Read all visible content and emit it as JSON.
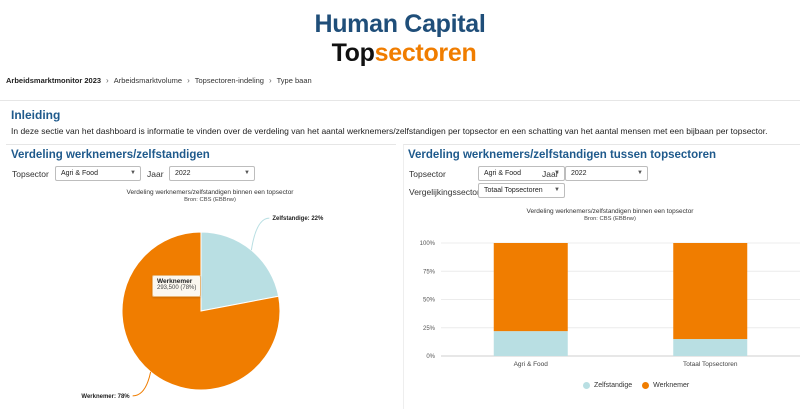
{
  "logo": {
    "line1": "Human Capital",
    "line2_a": "Top",
    "line2_b": "sectoren"
  },
  "breadcrumb": [
    "Arbeidsmarktmonitor 2023",
    "Arbeidsmarktvolume",
    "Topsectoren-indeling",
    "Type baan"
  ],
  "intro": {
    "title": "Inleiding",
    "text": "In deze sectie van het dashboard is informatie te vinden over de verdeling van het aantal werknemers/zelfstandigen per topsector en een schatting van het aantal mensen met een bijbaan per topsector."
  },
  "left_panel": {
    "title": "Verdeling werknemers/zelfstandigen",
    "topsector_label": "Topsector",
    "topsector_value": "Agri & Food",
    "jaar_label": "Jaar",
    "jaar_value": "2022",
    "tooltip": {
      "name": "Werknemer",
      "value": "293,500 (78%)"
    }
  },
  "right_panel": {
    "title": "Verdeling werknemers/zelfstandigen tussen topsectoren",
    "topsector_label": "Topsector",
    "topsector_value": "Agri & Food",
    "jaar_label": "Jaar",
    "jaar_value": "2022",
    "vergelijk_label": "Vergelijkingssector",
    "vergelijk_value": "Totaal Topsectoren"
  },
  "colors": {
    "werknemer": "#f07d00",
    "zelfstandige": "#b9dfe3",
    "title_blue": "#1f5a8c"
  },
  "chart_data": [
    {
      "type": "pie",
      "title": "Verdeling werknemers/zelfstandigen binnen een topsector",
      "subtitle": "Bron: CBS (EBBnw)",
      "slices": [
        {
          "name": "Zelfstandige",
          "value": 22,
          "label": "Zelfstandige: 22%",
          "color": "#b9dfe3"
        },
        {
          "name": "Werknemer",
          "value": 78,
          "label": "Werknemer: 78%",
          "color": "#f07d00"
        }
      ]
    },
    {
      "type": "bar",
      "stacked": true,
      "percent": true,
      "title": "Verdeling werknemers/zelfstandigen binnen een topsector",
      "subtitle": "Bron: CBS (EBBnw)",
      "categories": [
        "Agri & Food",
        "Totaal Topsectoren"
      ],
      "series": [
        {
          "name": "Zelfstandige",
          "values": [
            22,
            15
          ],
          "color": "#b9dfe3"
        },
        {
          "name": "Werknemer",
          "values": [
            78,
            85
          ],
          "color": "#f07d00"
        }
      ],
      "ylim": [
        0,
        100
      ],
      "yticks": [
        "0%",
        "25%",
        "50%",
        "75%",
        "100%"
      ],
      "grid": true,
      "legend": "bottom"
    }
  ]
}
